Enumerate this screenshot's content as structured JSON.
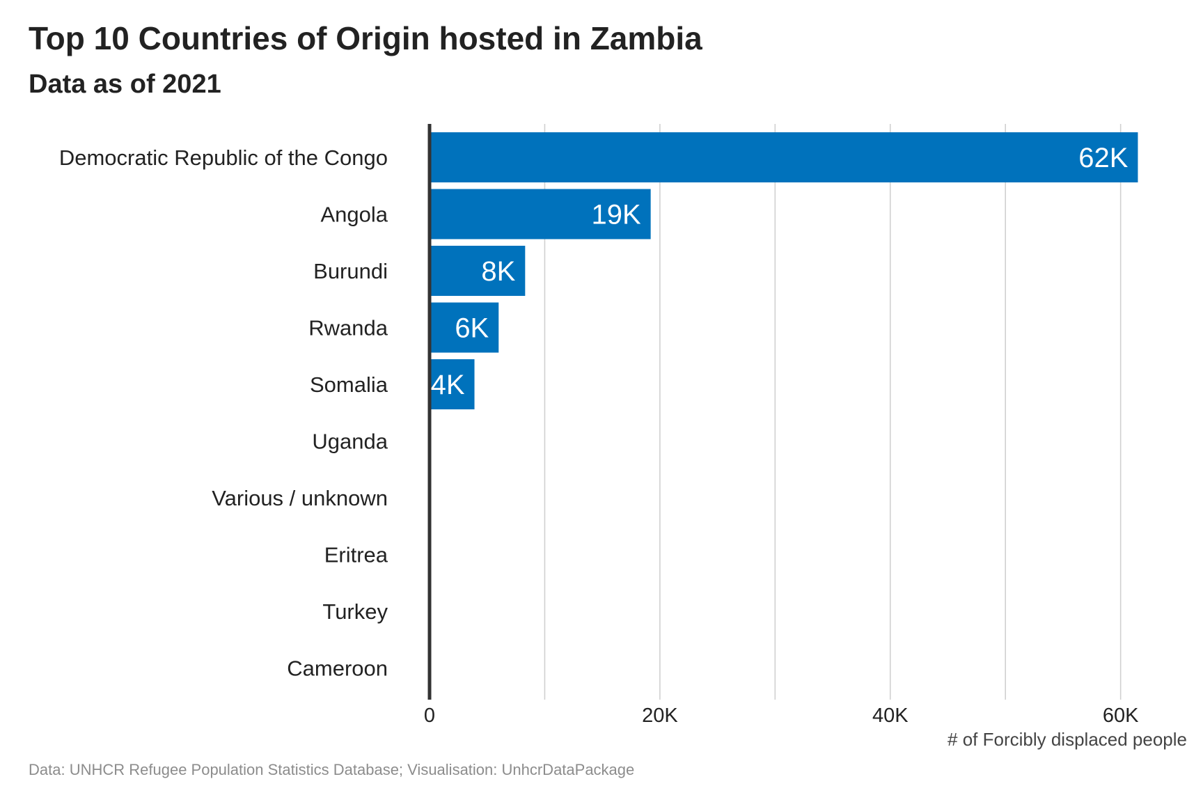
{
  "chart_data": {
    "type": "bar",
    "orientation": "horizontal",
    "title": "Top 10 Countries of Origin hosted in Zambia",
    "subtitle": "Data as of 2021",
    "categories": [
      "Democratic Republic of the Congo",
      "Angola",
      "Burundi",
      "Rwanda",
      "Somalia",
      "Uganda",
      "Various / unknown",
      "Eritrea",
      "Turkey",
      "Cameroon"
    ],
    "values": [
      61500,
      19200,
      8300,
      6000,
      3900,
      0,
      0,
      0,
      0,
      0
    ],
    "data_labels": [
      "62K",
      "19K",
      "8K",
      "6K",
      "4K",
      "",
      "",
      "",
      "",
      ""
    ],
    "xlabel": "# of Forcibly displaced people",
    "ylabel": "",
    "xlim": [
      0,
      62500
    ],
    "x_ticks": [
      0,
      20000,
      40000,
      60000
    ],
    "x_tick_labels": [
      "0",
      "20K",
      "40K",
      "60K"
    ],
    "x_gridlines": [
      10000,
      20000,
      30000,
      40000,
      50000,
      60000
    ],
    "grid": "vertical",
    "legend": "none",
    "bar_color": "#0072bc",
    "caption": "Data: UNHCR Refugee Population Statistics Database; Visualisation: UnhcrDataPackage"
  }
}
